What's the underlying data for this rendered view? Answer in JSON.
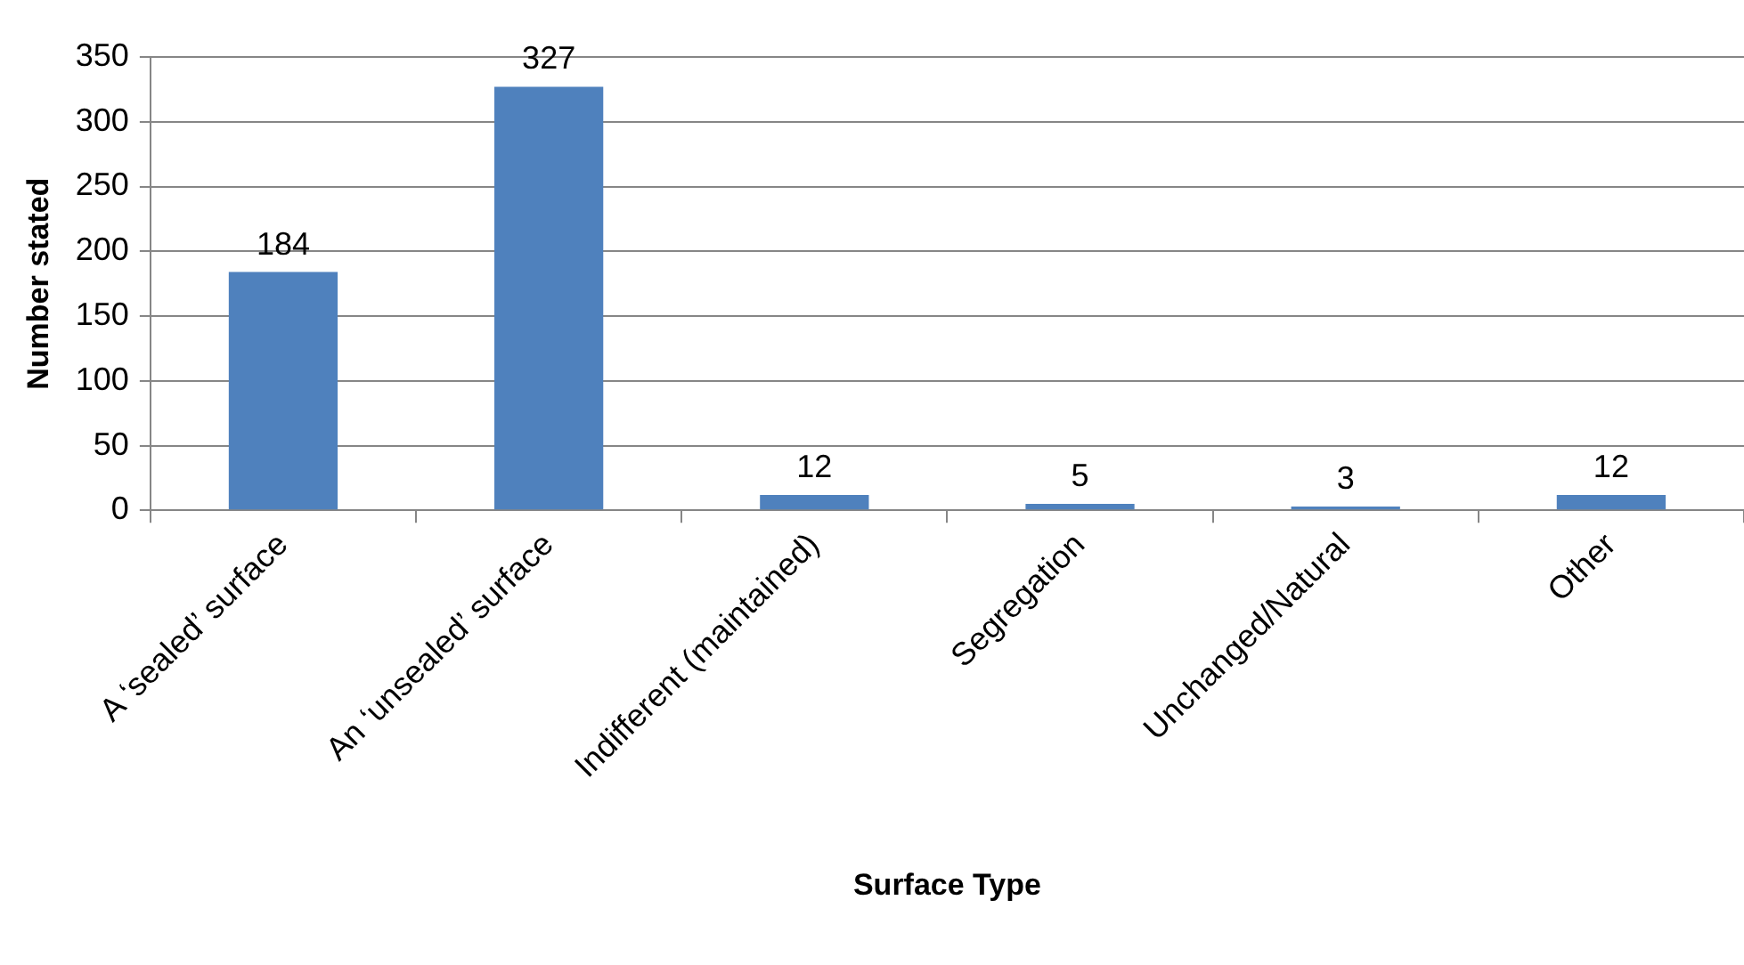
{
  "chart_data": {
    "type": "bar",
    "xlabel": "Surface Type",
    "ylabel": "Number stated",
    "categories": [
      "A ‘sealed’ surface",
      "An ‘unsealed’ surface",
      "Indifferent (maintained)",
      "Segregation",
      "Unchanged/Natural",
      "Other"
    ],
    "values": [
      184,
      327,
      12,
      5,
      3,
      12
    ],
    "color": "#4f81bd",
    "ylim": [
      0,
      350
    ],
    "yticks": [
      0,
      50,
      100,
      150,
      200,
      250,
      300,
      350
    ],
    "grid": "y",
    "data_labels": true,
    "legend": false
  }
}
